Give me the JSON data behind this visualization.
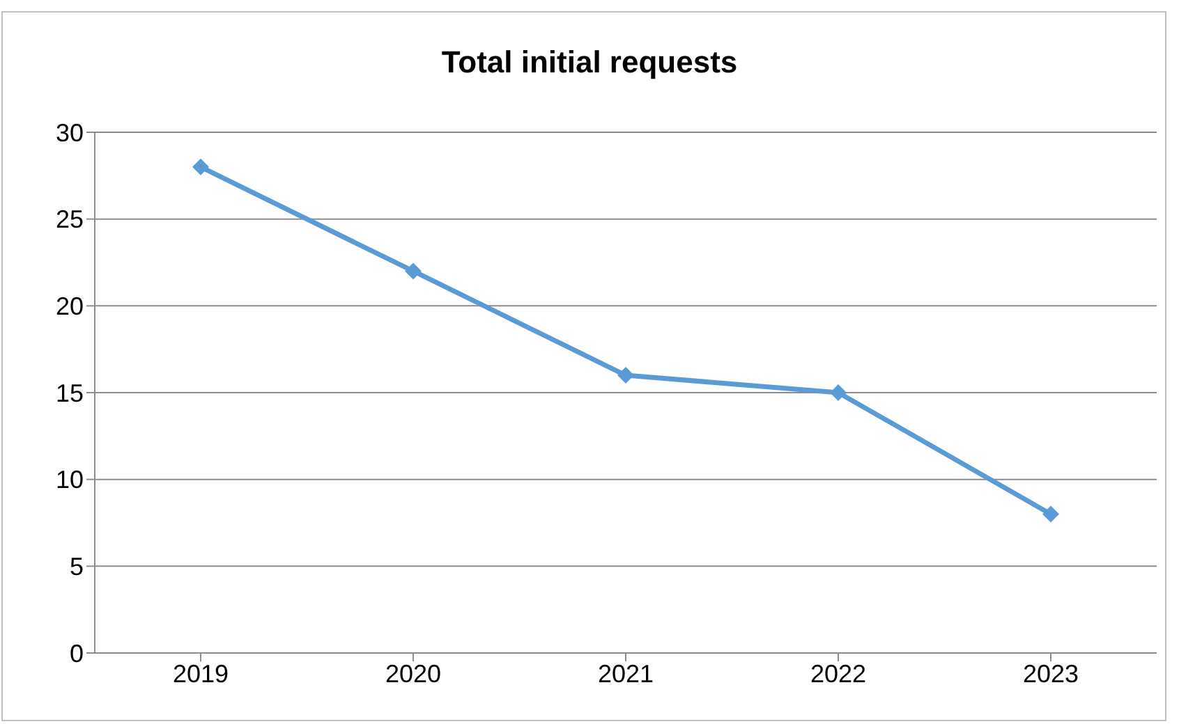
{
  "chart_data": {
    "type": "line",
    "title": "Total initial requests",
    "categories": [
      "2019",
      "2020",
      "2021",
      "2022",
      "2023"
    ],
    "values": [
      28,
      22,
      16,
      15,
      8
    ],
    "color": "#5b9bd5",
    "ylim": [
      0,
      30
    ],
    "yticks": [
      0,
      5,
      10,
      15,
      20,
      25,
      30
    ],
    "grid": "y",
    "marker": "diamond",
    "line_style": "solid"
  }
}
